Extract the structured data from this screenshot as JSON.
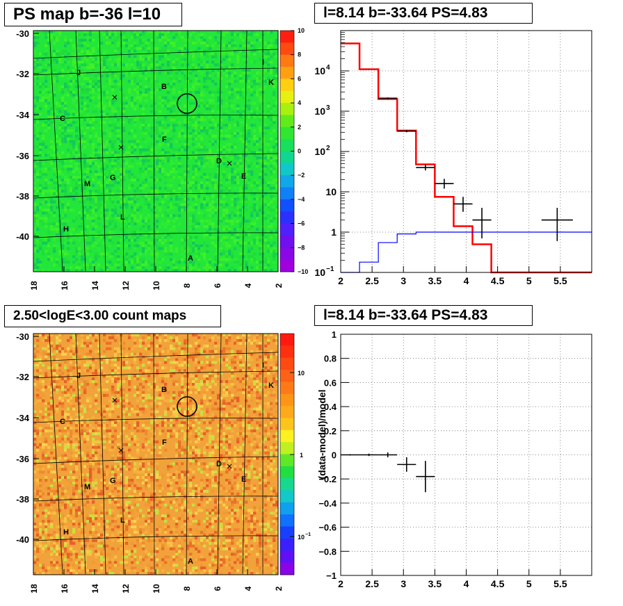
{
  "panels": {
    "tl_title": "PS map b=-36 l=10",
    "tr_title": "l=8.14 b=-33.64 PS=4.83",
    "bl_title": "2.50<logE<3.00 count maps",
    "br_title": "l=8.14 b=-33.64 PS=4.83"
  },
  "maps": {
    "yticks": [
      "-30",
      "-32",
      "-34",
      "-36",
      "-38",
      "-40"
    ],
    "xticks": [
      "18",
      "16",
      "14",
      "12",
      "10",
      "8",
      "6",
      "4",
      "2"
    ],
    "source_labels": [
      "J",
      "I",
      "B",
      "K",
      "C",
      "F",
      "D",
      "E",
      "G",
      "M",
      "L",
      "H",
      "A"
    ],
    "ps_colorbar_ticks": [
      "10",
      "8",
      "6",
      "4",
      "2",
      "0",
      "−2",
      "−4",
      "−6",
      "−8",
      "−10"
    ],
    "count_colorbar_ticks": [
      "10",
      "1",
      "10",
      "−1"
    ],
    "ps_color": "#22e63a",
    "count_color": "#f2a23a"
  },
  "chart_data": [
    {
      "type": "step",
      "panel": "spectrum",
      "xlim": [
        2,
        6
      ],
      "ylim": [
        0.1,
        100000
      ],
      "yscale": "log",
      "xticks": [
        "2",
        "2.5",
        "3",
        "3.5",
        "4",
        "4.5",
        "5",
        "5.5"
      ],
      "yticks": [
        {
          "base": "10",
          "exp": "4",
          "value": 10000
        },
        {
          "base": "10",
          "exp": "3",
          "value": 1000
        },
        {
          "base": "10",
          "exp": "2",
          "value": 100
        },
        {
          "base": "10",
          "exp": "",
          "value": 10
        },
        {
          "base": "1",
          "exp": "",
          "value": 1
        },
        {
          "base": "10",
          "exp": "−1",
          "value": 0.1
        }
      ],
      "bin_edges": [
        2.0,
        2.3,
        2.6,
        2.9,
        3.2,
        3.5,
        3.8,
        4.1,
        4.4,
        4.7,
        6.0
      ],
      "series": [
        {
          "color": "#ff0000",
          "values": [
            48000,
            11000,
            2000,
            330,
            48,
            7.5,
            1.4,
            0.5,
            0.1,
            0.1
          ]
        },
        {
          "color": "#0000ff",
          "values": [
            0.08,
            0.18,
            0.55,
            0.9,
            1.0,
            1.0,
            1.0,
            1.0,
            1.0,
            1.0
          ]
        }
      ],
      "points": [
        {
          "x": 2.75,
          "xerr": 0.15,
          "y": 2100,
          "ylo": 2000,
          "yhi": 2200
        },
        {
          "x": 3.05,
          "xerr": 0.15,
          "y": 320,
          "ylo": 300,
          "yhi": 340
        },
        {
          "x": 3.35,
          "xerr": 0.15,
          "y": 40,
          "ylo": 34,
          "yhi": 47
        },
        {
          "x": 3.65,
          "xerr": 0.15,
          "y": 16,
          "ylo": 12,
          "yhi": 21
        },
        {
          "x": 3.95,
          "xerr": 0.15,
          "y": 5,
          "ylo": 3.2,
          "yhi": 7.5
        },
        {
          "x": 4.25,
          "xerr": 0.15,
          "y": 2,
          "ylo": 0.7,
          "yhi": 4
        },
        {
          "x": 5.45,
          "xerr": 0.25,
          "y": 2,
          "ylo": 0.6,
          "yhi": 4
        }
      ]
    },
    {
      "type": "scatter",
      "panel": "residual",
      "xlim": [
        2,
        6
      ],
      "ylim": [
        -1,
        1
      ],
      "ylabel": "(data-model)/model",
      "xticks": [
        "2",
        "2.5",
        "3",
        "3.5",
        "4",
        "4.5",
        "5",
        "5.5"
      ],
      "yticks": [
        "1",
        "0.8",
        "0.6",
        "0.4",
        "0.2",
        "0",
        "−0.2",
        "−0.4",
        "−0.6",
        "−0.8",
        "−1"
      ],
      "points": [
        {
          "x": 2.15,
          "xerr": 0.15,
          "y": 0.0,
          "yerr": 0.005
        },
        {
          "x": 2.45,
          "xerr": 0.15,
          "y": 0.0,
          "yerr": 0.01
        },
        {
          "x": 2.75,
          "xerr": 0.15,
          "y": 0.0,
          "yerr": 0.02
        },
        {
          "x": 3.05,
          "xerr": 0.15,
          "y": -0.08,
          "yerr": 0.06
        },
        {
          "x": 3.35,
          "xerr": 0.15,
          "y": -0.18,
          "yerr": 0.13
        }
      ]
    }
  ]
}
